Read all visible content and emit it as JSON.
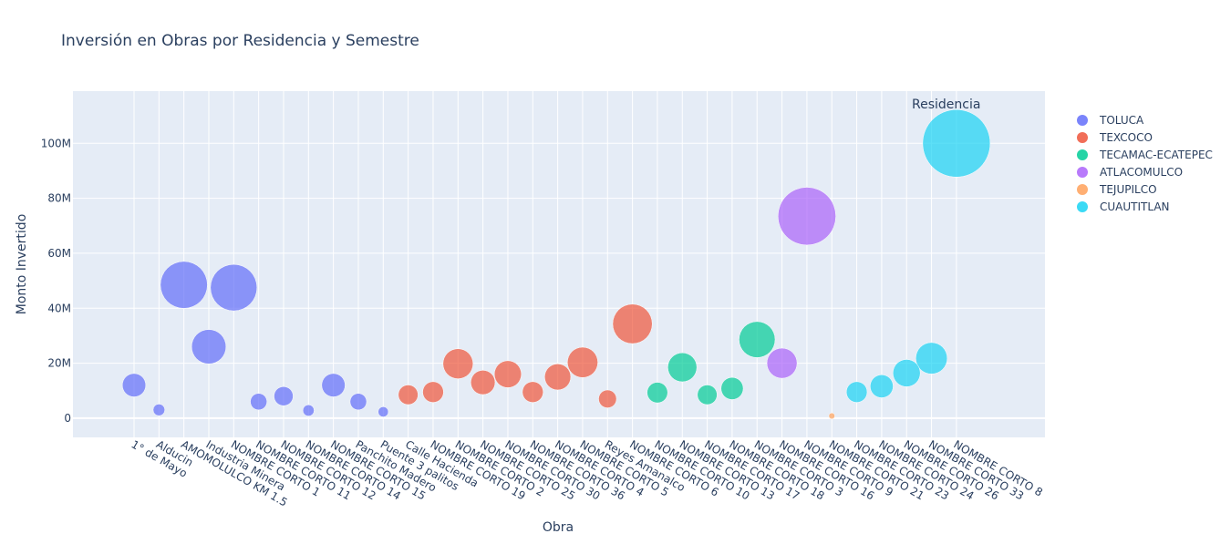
{
  "chart_data": {
    "type": "scatter",
    "title": "Inversión en Obras por Residencia y Semestre",
    "xlabel": "Obra",
    "ylabel": "Monto Invertido",
    "ylim": [
      -7000000,
      119000000
    ],
    "y_ticks": [
      0,
      20000000,
      40000000,
      60000000,
      80000000,
      100000000
    ],
    "y_tick_labels": [
      "0",
      "20M",
      "40M",
      "60M",
      "80M",
      "100M"
    ],
    "grid": true,
    "legend_title": "Residencia",
    "legend_position": "right",
    "categories": [
      "1° de Mayo",
      "Alducin",
      "AMOMOLULCO KM 1.5",
      "Industria Minera",
      "NOMBRE CORTO 1",
      "NOMBRE CORTO 11",
      "NOMBRE CORTO 12",
      "NOMBRE CORTO 14",
      "NOMBRE CORTO 15",
      "Panchito Madero",
      "Puente 3 palitos",
      "Calle Hacienda",
      "NOMBRE CORTO 19",
      "NOMBRE CORTO 2",
      "NOMBRE CORTO 25",
      "NOMBRE CORTO 30",
      "NOMBRE CORTO 36",
      "NOMBRE CORTO 4",
      "NOMBRE CORTO 5",
      "Reyes Amanalco",
      "NOMBRE CORTO 6",
      "NOMBRE CORTO 10",
      "NOMBRE CORTO 13",
      "NOMBRE CORTO 17",
      "NOMBRE CORTO 18",
      "NOMBRE CORTO 3",
      "NOMBRE CORTO 16",
      "NOMBRE CORTO 9",
      "NOMBRE CORTO 21",
      "NOMBRE CORTO 23",
      "NOMBRE CORTO 24",
      "NOMBRE CORTO 26",
      "NOMBRE CORTO 33",
      "NOMBRE CORTO 8"
    ],
    "series": [
      {
        "name": "TOLUCA",
        "color": "#636efa",
        "points": [
          {
            "x": "1° de Mayo",
            "y": 12000000
          },
          {
            "x": "Alducin",
            "y": 3000000
          },
          {
            "x": "AMOMOLULCO KM 1.5",
            "y": 48500000
          },
          {
            "x": "Industria Minera",
            "y": 26000000
          },
          {
            "x": "NOMBRE CORTO 1",
            "y": 47500000
          },
          {
            "x": "NOMBRE CORTO 11",
            "y": 6000000
          },
          {
            "x": "NOMBRE CORTO 12",
            "y": 8000000
          },
          {
            "x": "NOMBRE CORTO 14",
            "y": 2800000
          },
          {
            "x": "NOMBRE CORTO 15",
            "y": 12000000
          },
          {
            "x": "Panchito Madero",
            "y": 6000000
          },
          {
            "x": "Puente 3 palitos",
            "y": 2300000
          }
        ]
      },
      {
        "name": "TEXCOCO",
        "color": "#ef553b",
        "points": [
          {
            "x": "Calle Hacienda",
            "y": 8500000
          },
          {
            "x": "NOMBRE CORTO 19",
            "y": 9500000
          },
          {
            "x": "NOMBRE CORTO 2",
            "y": 19800000
          },
          {
            "x": "NOMBRE CORTO 25",
            "y": 13000000
          },
          {
            "x": "NOMBRE CORTO 30",
            "y": 16000000
          },
          {
            "x": "NOMBRE CORTO 36",
            "y": 9500000
          },
          {
            "x": "NOMBRE CORTO 4",
            "y": 15000000
          },
          {
            "x": "NOMBRE CORTO 5",
            "y": 20300000
          },
          {
            "x": "NOMBRE CORTO 6",
            "y": 34300000
          },
          {
            "x": "Reyes Amanalco",
            "y": 7000000
          }
        ]
      },
      {
        "name": "TECAMAC-ECATEPEC",
        "color": "#00cc96",
        "points": [
          {
            "x": "NOMBRE CORTO 10",
            "y": 9300000
          },
          {
            "x": "NOMBRE CORTO 13",
            "y": 18500000
          },
          {
            "x": "NOMBRE CORTO 17",
            "y": 8500000
          },
          {
            "x": "NOMBRE CORTO 18",
            "y": 10800000
          },
          {
            "x": "NOMBRE CORTO 3",
            "y": 28600000
          }
        ]
      },
      {
        "name": "ATLACOMULCO",
        "color": "#ab63fa",
        "points": [
          {
            "x": "NOMBRE CORTO 16",
            "y": 20000000
          },
          {
            "x": "NOMBRE CORTO 9",
            "y": 73500000
          }
        ]
      },
      {
        "name": "TEJUPILCO",
        "color": "#ffa15a",
        "points": [
          {
            "x": "NOMBRE CORTO 21",
            "y": 800000
          }
        ]
      },
      {
        "name": "CUAUTITLAN",
        "color": "#19d3f3",
        "points": [
          {
            "x": "NOMBRE CORTO 23",
            "y": 9500000
          },
          {
            "x": "NOMBRE CORTO 24",
            "y": 11600000
          },
          {
            "x": "NOMBRE CORTO 26",
            "y": 16400000
          },
          {
            "x": "NOMBRE CORTO 33",
            "y": 21800000
          },
          {
            "x": "NOMBRE CORTO 8",
            "y": 100000000
          }
        ]
      }
    ]
  }
}
